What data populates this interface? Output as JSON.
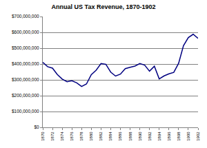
{
  "chart_data": {
    "type": "line",
    "title": "Annual US Tax Revenue, 1870-1902",
    "x": [
      1870,
      1871,
      1872,
      1873,
      1874,
      1875,
      1876,
      1877,
      1878,
      1879,
      1880,
      1881,
      1882,
      1883,
      1884,
      1885,
      1886,
      1887,
      1888,
      1889,
      1890,
      1891,
      1892,
      1893,
      1894,
      1895,
      1896,
      1897,
      1898,
      1899,
      1900,
      1901,
      1902
    ],
    "values": [
      411000000,
      383000000,
      374000000,
      334000000,
      305000000,
      288000000,
      294000000,
      281000000,
      258000000,
      274000000,
      333000000,
      361000000,
      403000000,
      398000000,
      349000000,
      324000000,
      336000000,
      371000000,
      379000000,
      387000000,
      403000000,
      393000000,
      355000000,
      386000000,
      306000000,
      325000000,
      338000000,
      347000000,
      405000000,
      516000000,
      567000000,
      588000000,
      562000000
    ],
    "color": "#000080",
    "xlim": [
      1870,
      1902
    ],
    "xticks": [
      1870,
      1872,
      1874,
      1876,
      1878,
      1880,
      1882,
      1884,
      1886,
      1888,
      1890,
      1892,
      1894,
      1896,
      1898,
      1900,
      1902
    ],
    "ylim": [
      0,
      700000000
    ],
    "yticks": [
      {
        "value": 0,
        "label": "$0"
      },
      {
        "value": 100000000,
        "label": "$100,000,000"
      },
      {
        "value": 200000000,
        "label": "$200,000,000"
      },
      {
        "value": 300000000,
        "label": "$300,000,000"
      },
      {
        "value": 400000000,
        "label": "$400,000,000"
      },
      {
        "value": 500000000,
        "label": "$500,000,000"
      },
      {
        "value": 600000000,
        "label": "$600,000,000"
      },
      {
        "value": 700000000,
        "label": "$700,000,000"
      }
    ],
    "grid": true
  }
}
